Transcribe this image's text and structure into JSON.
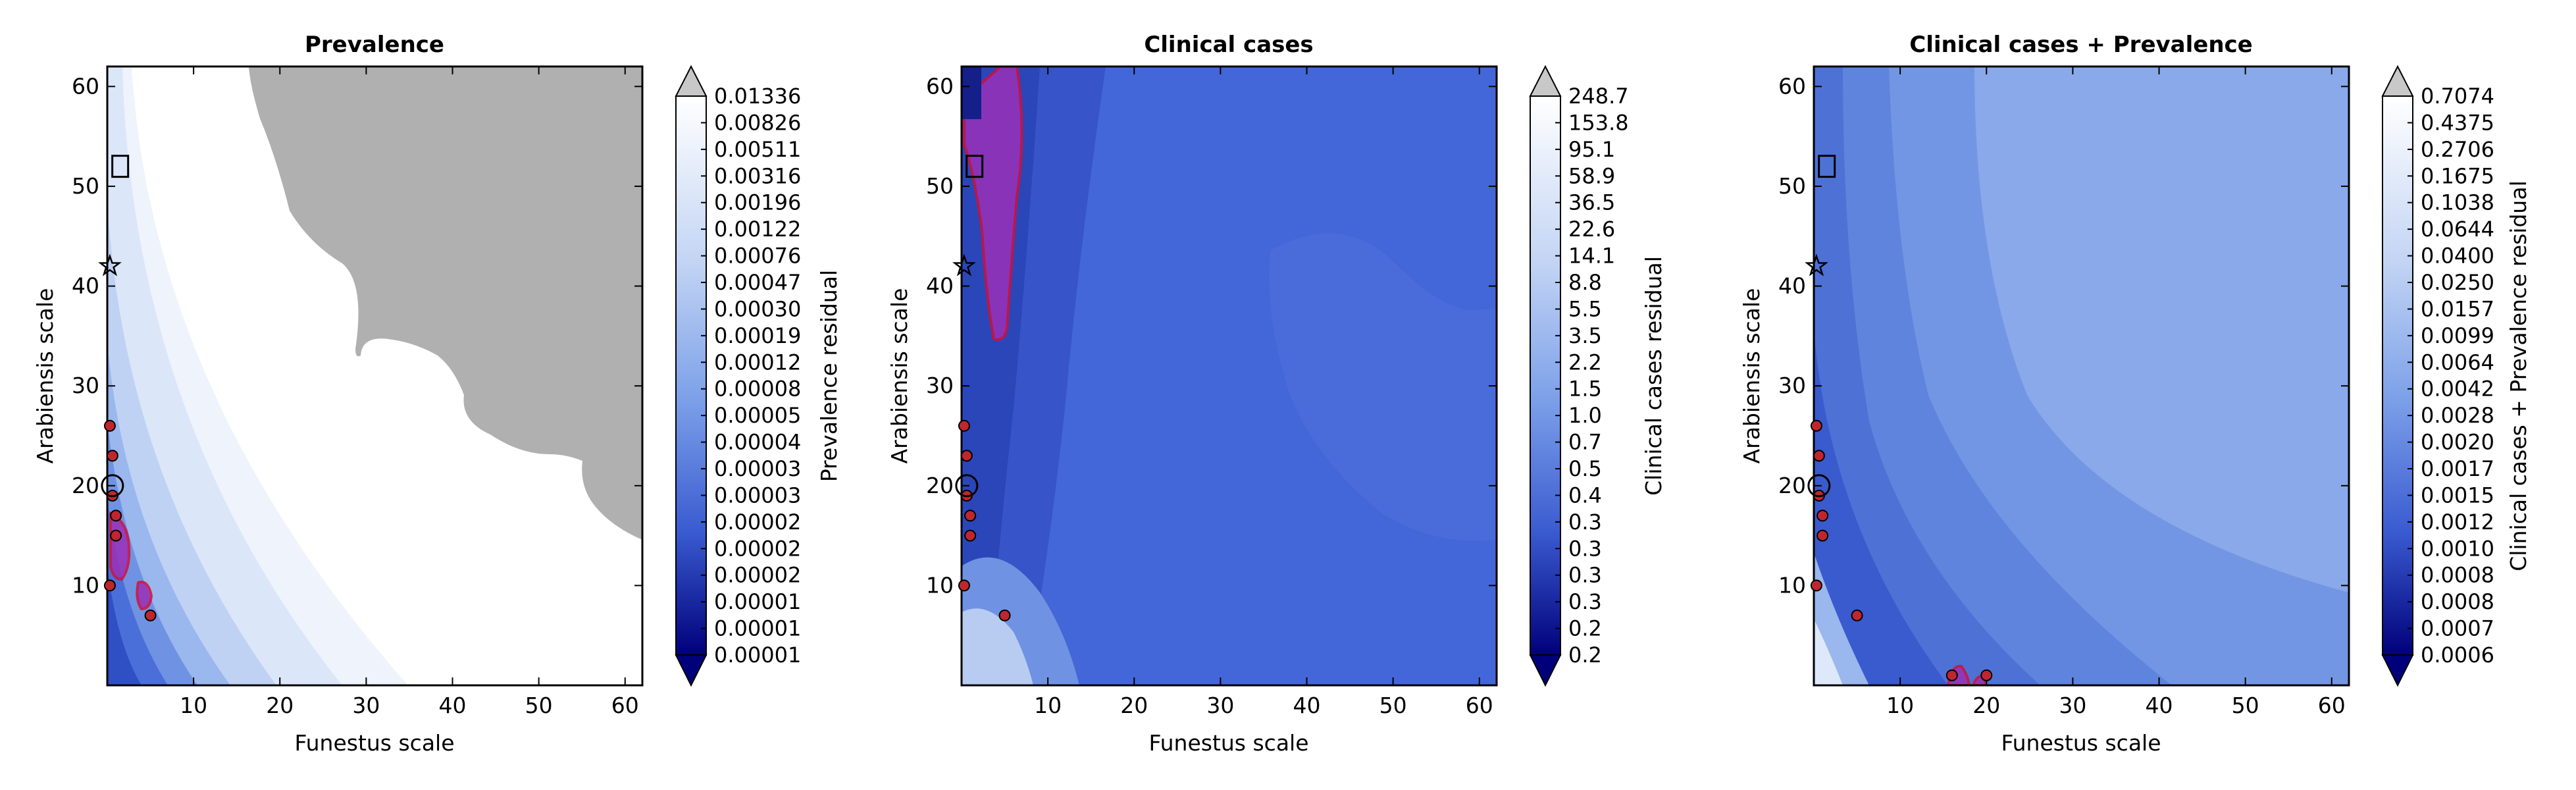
{
  "chart_data": [
    {
      "type": "heatmap",
      "title": "Prevalence",
      "xlabel": "Funestus scale",
      "ylabel": "Arabiensis scale",
      "xlim": [
        0,
        62
      ],
      "ylim": [
        0,
        62
      ],
      "xticks": [
        10,
        20,
        30,
        40,
        50,
        60
      ],
      "yticks": [
        10,
        20,
        30,
        40,
        50,
        60
      ],
      "colorbar_label": "Prevalence residual",
      "colorbar_levels": [
        "0.01336",
        "0.00826",
        "0.00511",
        "0.00316",
        "0.00196",
        "0.00122",
        "0.00076",
        "0.00047",
        "0.00030",
        "0.00019",
        "0.00012",
        "0.00008",
        "0.00005",
        "0.00004",
        "0.00003",
        "0.00003",
        "0.00002",
        "0.00002",
        "0.00002",
        "0.00001",
        "0.00001",
        "0.00001"
      ],
      "colorbar_extend": "both",
      "masked_region_color": "#b0b0b0",
      "has_grey_masked_region": true,
      "best_fit_points": [
        [
          0.3,
          26
        ],
        [
          0.6,
          23
        ],
        [
          0.6,
          19
        ],
        [
          1,
          17
        ],
        [
          1,
          15
        ],
        [
          0.3,
          10
        ],
        [
          5,
          7
        ]
      ],
      "markers": {
        "square": [
          1.5,
          52
        ],
        "star": [
          0.3,
          42
        ],
        "circle": [
          0.6,
          20
        ]
      }
    },
    {
      "type": "heatmap",
      "title": "Clinical cases",
      "xlabel": "Funestus scale",
      "ylabel": "Arabiensis scale",
      "xlim": [
        0,
        62
      ],
      "ylim": [
        0,
        62
      ],
      "xticks": [
        10,
        20,
        30,
        40,
        50,
        60
      ],
      "yticks": [
        10,
        20,
        30,
        40,
        50,
        60
      ],
      "colorbar_label": "Clinical cases residual",
      "colorbar_levels": [
        "248.7",
        "153.8",
        "95.1",
        "58.9",
        "36.5",
        "22.6",
        "14.1",
        "8.8",
        "5.5",
        "3.5",
        "2.2",
        "1.5",
        "1.0",
        "0.7",
        "0.5",
        "0.4",
        "0.3",
        "0.3",
        "0.3",
        "0.3",
        "0.2",
        "0.2"
      ],
      "colorbar_extend": "both",
      "has_grey_masked_region": false,
      "best_fit_points": [
        [
          0.3,
          26
        ],
        [
          0.6,
          23
        ],
        [
          0.6,
          19
        ],
        [
          1,
          17
        ],
        [
          1,
          15
        ],
        [
          0.3,
          10
        ],
        [
          5,
          7
        ]
      ],
      "markers": {
        "square": [
          1.5,
          52
        ],
        "star": [
          0.3,
          42
        ],
        "circle": [
          0.6,
          20
        ]
      }
    },
    {
      "type": "heatmap",
      "title": "Clinical cases + Prevalence",
      "xlabel": "Funestus scale",
      "ylabel": "Arabiensis scale",
      "xlim": [
        0,
        62
      ],
      "ylim": [
        0,
        62
      ],
      "xticks": [
        10,
        20,
        30,
        40,
        50,
        60
      ],
      "yticks": [
        10,
        20,
        30,
        40,
        50,
        60
      ],
      "colorbar_label": "Clinical cases + Prevalence residual",
      "colorbar_levels": [
        "0.7074",
        "0.4375",
        "0.2706",
        "0.1675",
        "0.1038",
        "0.0644",
        "0.0400",
        "0.0250",
        "0.0157",
        "0.0099",
        "0.0064",
        "0.0042",
        "0.0028",
        "0.0020",
        "0.0017",
        "0.0015",
        "0.0012",
        "0.0010",
        "0.0008",
        "0.0008",
        "0.0007",
        "0.0006"
      ],
      "colorbar_extend": "both",
      "has_grey_masked_region": false,
      "best_fit_points": [
        [
          0.3,
          26
        ],
        [
          0.6,
          23
        ],
        [
          0.6,
          19
        ],
        [
          1,
          17
        ],
        [
          1,
          15
        ],
        [
          0.3,
          10
        ],
        [
          5,
          7
        ],
        [
          16,
          1
        ],
        [
          20,
          1
        ]
      ],
      "markers": {
        "square": [
          1.5,
          52
        ],
        "star": [
          0.3,
          42
        ],
        "circle": [
          0.6,
          20
        ]
      }
    }
  ],
  "colors": {
    "dark_navy": "#000080",
    "mid_blue": "#4169d8",
    "light_blue": "#a9c4f0",
    "white": "#ffffff",
    "grey_mask": "#b0b0b0",
    "purple_region": "#9a30b8",
    "red_outline": "#d0103a",
    "best_fit_fill": "#c0262e"
  }
}
